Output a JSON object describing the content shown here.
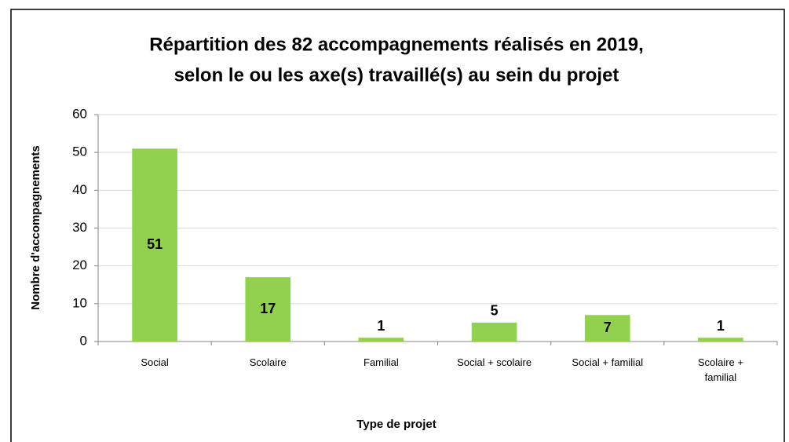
{
  "chart_data": {
    "type": "bar",
    "title": [
      "Répartition des 82 accompagnements réalisés en 2019,",
      "selon le ou les axe(s) travaillé(s) au sein du projet"
    ],
    "x_label": "Type de projet",
    "y_label": "Nombre d'accompagnements",
    "categories": [
      "Social",
      "Scolaire",
      "Familial",
      "Social + scolaire",
      "Social + familial",
      "Scolaire + familial"
    ],
    "values": [
      51,
      17,
      1,
      5,
      7,
      1
    ],
    "color": "#92d050",
    "ylim": [
      0,
      60
    ],
    "yticks": [
      0,
      10,
      20,
      30,
      40,
      50,
      60
    ],
    "grid": true
  }
}
